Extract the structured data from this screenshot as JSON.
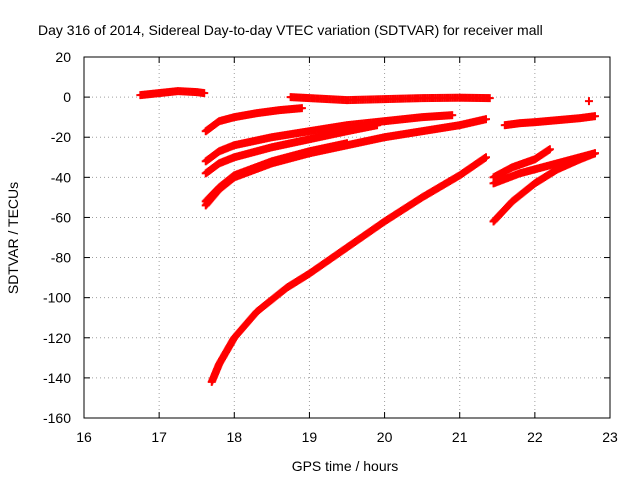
{
  "chart_data": {
    "type": "scatter",
    "title": "Day 316 of 2014, Sidereal Day-to-day VTEC variation (SDTVAR) for receiver mall",
    "xlabel": "GPS time / hours",
    "ylabel": "SDTVAR / TECUs",
    "xlim": [
      16,
      23
    ],
    "ylim": [
      -160,
      20
    ],
    "xticks": [
      16,
      17,
      18,
      19,
      20,
      21,
      22,
      23
    ],
    "yticks": [
      -160,
      -140,
      -120,
      -100,
      -80,
      -60,
      -40,
      -20,
      0,
      20
    ],
    "grid": true,
    "marker": "+",
    "color": "#ff0000",
    "series": [
      {
        "points": [
          [
            16.75,
            1
          ],
          [
            17.0,
            2
          ],
          [
            17.25,
            3
          ],
          [
            17.5,
            2.5
          ],
          [
            17.6,
            2
          ]
        ]
      },
      {
        "points": [
          [
            17.62,
            -17
          ],
          [
            17.8,
            -12
          ],
          [
            18.0,
            -10
          ],
          [
            18.3,
            -8
          ],
          [
            18.6,
            -6.5
          ],
          [
            18.9,
            -5.5
          ]
        ]
      },
      {
        "points": [
          [
            18.75,
            0
          ],
          [
            19.0,
            -0.5
          ],
          [
            19.5,
            -1.5
          ],
          [
            20.0,
            -1.0
          ],
          [
            20.5,
            -0.5
          ],
          [
            21.0,
            -0.3
          ],
          [
            21.4,
            -0.5
          ]
        ]
      },
      {
        "points": [
          [
            17.62,
            -32
          ],
          [
            17.8,
            -27
          ],
          [
            18.0,
            -24
          ],
          [
            18.5,
            -20
          ],
          [
            19.0,
            -17
          ],
          [
            19.5,
            -14
          ],
          [
            20.0,
            -12
          ],
          [
            20.5,
            -10
          ],
          [
            20.9,
            -9
          ]
        ]
      },
      {
        "points": [
          [
            17.62,
            -38
          ],
          [
            17.8,
            -33
          ],
          [
            18.0,
            -30
          ],
          [
            18.5,
            -25
          ],
          [
            19.0,
            -21
          ],
          [
            19.5,
            -17
          ],
          [
            19.9,
            -14
          ]
        ]
      },
      {
        "points": [
          [
            17.62,
            -54
          ],
          [
            17.8,
            -46
          ],
          [
            18.0,
            -40
          ],
          [
            18.5,
            -33
          ],
          [
            19.0,
            -28
          ],
          [
            19.5,
            -24
          ],
          [
            20.0,
            -20
          ],
          [
            20.5,
            -17
          ],
          [
            21.0,
            -14
          ],
          [
            21.35,
            -11
          ]
        ]
      },
      {
        "points": [
          [
            17.62,
            -52
          ],
          [
            17.8,
            -45
          ],
          [
            18.0,
            -39
          ],
          [
            18.5,
            -32
          ],
          [
            19.0,
            -27
          ],
          [
            19.5,
            -23
          ]
        ]
      },
      {
        "points": [
          [
            17.7,
            -142
          ],
          [
            17.8,
            -133
          ],
          [
            18.0,
            -120
          ],
          [
            18.3,
            -107
          ],
          [
            18.7,
            -95
          ],
          [
            19.0,
            -88
          ],
          [
            19.5,
            -75
          ],
          [
            20.0,
            -62
          ],
          [
            20.5,
            -50
          ],
          [
            21.0,
            -39
          ],
          [
            21.35,
            -30
          ]
        ]
      },
      {
        "points": [
          [
            21.45,
            -40
          ],
          [
            21.7,
            -35
          ],
          [
            22.0,
            -31
          ],
          [
            22.2,
            -26
          ]
        ]
      },
      {
        "points": [
          [
            21.45,
            -43
          ],
          [
            21.8,
            -38
          ],
          [
            22.2,
            -34
          ],
          [
            22.5,
            -31
          ],
          [
            22.8,
            -28
          ]
        ]
      },
      {
        "points": [
          [
            21.45,
            -62
          ],
          [
            21.7,
            -52
          ],
          [
            22.0,
            -43
          ],
          [
            22.3,
            -36
          ],
          [
            22.6,
            -31
          ],
          [
            22.8,
            -28
          ]
        ]
      },
      {
        "points": [
          [
            21.6,
            -14
          ],
          [
            21.8,
            -13
          ],
          [
            22.0,
            -12.5
          ],
          [
            22.3,
            -11.5
          ],
          [
            22.6,
            -10.5
          ],
          [
            22.8,
            -9.5
          ]
        ]
      },
      {
        "points": [
          [
            22.72,
            -2
          ]
        ]
      }
    ]
  }
}
